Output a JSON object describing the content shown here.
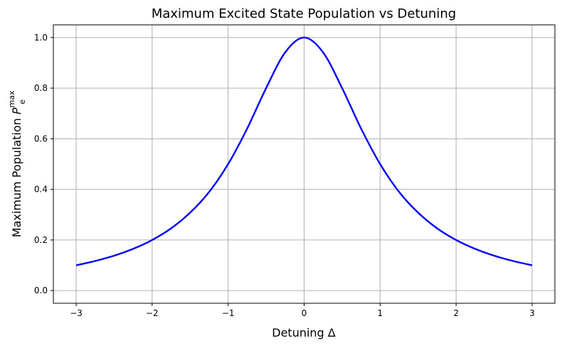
{
  "chart_data": {
    "type": "line",
    "title": "Maximum Excited State Population vs Detuning",
    "xlabel": "Detuning Δ",
    "ylabel_main": "Maximum Population ",
    "ylabel_symbol": "P",
    "ylabel_sub": "e",
    "ylabel_sup": "max",
    "xlim": [
      -3.3,
      3.3
    ],
    "ylim": [
      -0.05,
      1.05
    ],
    "x_ticks": [
      -3,
      -2,
      -1,
      0,
      1,
      2,
      3
    ],
    "x_tick_labels": [
      "−3",
      "−2",
      "−1",
      "0",
      "1",
      "2",
      "3"
    ],
    "y_ticks": [
      0.0,
      0.2,
      0.4,
      0.6,
      0.8,
      1.0
    ],
    "y_tick_labels": [
      "0.0",
      "0.2",
      "0.4",
      "0.6",
      "0.8",
      "1.0"
    ],
    "grid": true,
    "series": [
      {
        "color": "#0000ff",
        "x": [
          -3.0,
          -2.75,
          -2.5,
          -2.25,
          -2.0,
          -1.75,
          -1.5,
          -1.25,
          -1.0,
          -0.75,
          -0.5,
          -0.25,
          0.0,
          0.25,
          0.5,
          0.75,
          1.0,
          1.25,
          1.5,
          1.75,
          2.0,
          2.25,
          2.5,
          2.75,
          3.0
        ],
        "y": [
          0.1,
          0.117,
          0.138,
          0.165,
          0.2,
          0.246,
          0.308,
          0.39,
          0.5,
          0.64,
          0.8,
          0.941,
          1.0,
          0.941,
          0.8,
          0.64,
          0.5,
          0.39,
          0.308,
          0.246,
          0.2,
          0.165,
          0.138,
          0.117,
          0.1
        ]
      }
    ]
  }
}
